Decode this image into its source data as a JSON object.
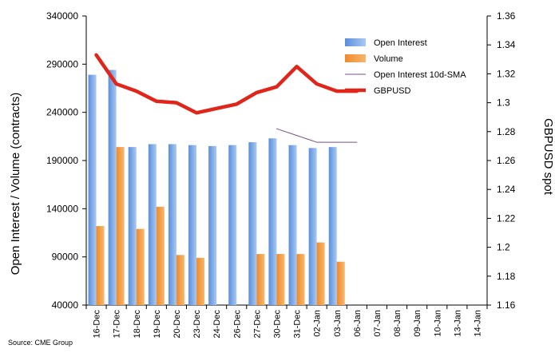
{
  "chart_data": {
    "type": "bar",
    "ylabel_left": "Open Interest / Volume (contracts)",
    "ylabel_right": "GBPUSD spot",
    "source": "Source: CME Group",
    "categories": [
      "16-Dec",
      "17-Dec",
      "18-Dec",
      "19-Dec",
      "20-Dec",
      "23-Dec",
      "24-Dec",
      "26-Dec",
      "27-Dec",
      "30-Dec",
      "31-Dec",
      "02-Jan",
      "03-Jan",
      "06-Jan",
      "07-Jan",
      "08-Jan",
      "09-Jan",
      "10-Jan",
      "13-Jan",
      "14-Jan"
    ],
    "ylim_left": [
      40000,
      340000
    ],
    "yticks_left": [
      "340000",
      "290000",
      "240000",
      "190000",
      "140000",
      "90000",
      "40000"
    ],
    "yticks_left_values": [
      340000,
      290000,
      240000,
      190000,
      140000,
      90000,
      40000
    ],
    "ylim_right": [
      1.16,
      1.36
    ],
    "yticks_right": [
      "1.36",
      "1.34",
      "1.32",
      "1.3",
      "1.28",
      "1.26",
      "1.24",
      "1.22",
      "1.2",
      "1.18",
      "1.16"
    ],
    "yticks_right_values": [
      1.36,
      1.34,
      1.32,
      1.3,
      1.28,
      1.26,
      1.24,
      1.22,
      1.2,
      1.18,
      1.16
    ],
    "grid": false,
    "legend_position": "top-right",
    "series": [
      {
        "name": "Open Interest",
        "kind": "bar",
        "axis": "left",
        "color": "#7aa8e6",
        "values": [
          279000,
          284000,
          204000,
          207000,
          207000,
          206000,
          205000,
          206000,
          209000,
          213000,
          206000,
          203000,
          204000,
          null,
          null,
          null,
          null,
          null,
          null,
          null
        ]
      },
      {
        "name": "Volume",
        "kind": "bar",
        "axis": "left",
        "color": "#f4a04a",
        "values": [
          122000,
          204000,
          119000,
          142000,
          92000,
          89000,
          null,
          null,
          93000,
          93000,
          93000,
          105000,
          85000,
          null,
          null,
          null,
          null,
          null,
          null,
          null
        ]
      },
      {
        "name": "Open Interest 10d-SMA",
        "kind": "line",
        "axis": "left",
        "color": "#7b4f8c",
        "values": [
          null,
          null,
          null,
          null,
          null,
          null,
          null,
          null,
          null,
          223000,
          216000,
          209000,
          209000,
          209000,
          null,
          null,
          null,
          null,
          null,
          null
        ]
      },
      {
        "name": "GBPUSD",
        "kind": "line",
        "axis": "right",
        "color": "#e0261b",
        "values": [
          1.333,
          1.313,
          1.308,
          1.301,
          1.3,
          1.293,
          1.296,
          1.299,
          1.307,
          1.311,
          1.325,
          1.313,
          1.308,
          1.308,
          null,
          null,
          null,
          null,
          null,
          null
        ]
      }
    ]
  }
}
